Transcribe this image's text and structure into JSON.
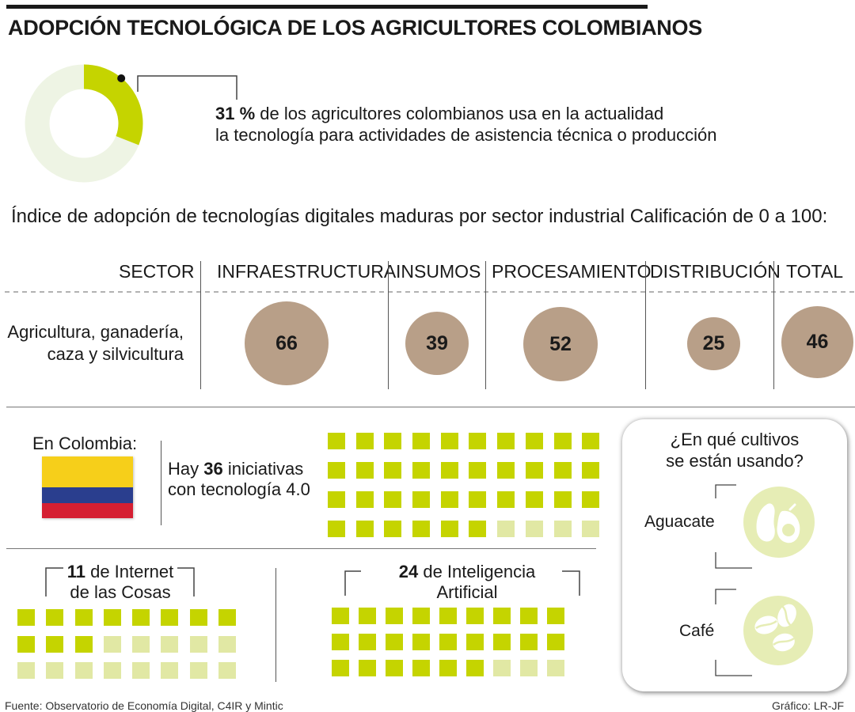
{
  "title": "ADOPCIÓN TECNOLÓGICA DE LOS AGRICULTORES COLOMBIANOS",
  "highlight": {
    "percent_text": "31 %",
    "line1_rest": " de los agricultores colombianos usa en la actualidad",
    "line2": "la tecnología para actividades de asistencia técnica o producción",
    "share": 0.31,
    "colors": {
      "share": "#c5d400",
      "rest": "#eef4e4"
    }
  },
  "index_title": "Índice de adopción de tecnologías digitales maduras por sector industrial Calificación de 0 a 100:",
  "table": {
    "headers": {
      "sector": "SECTOR",
      "infra": "INFRAESTRUCTURA",
      "insumos": "INSUMOS",
      "proc": "PROCESAMIENTO",
      "dist": "DISTRIBUCIÓN",
      "total": "TOTAL"
    },
    "row_label_line1": "Agricultura, ganadería,",
    "row_label_line2": "caza y silvicultura",
    "values": {
      "infra": "66",
      "insumos": "39",
      "proc": "52",
      "dist": "25",
      "total": "46"
    },
    "circle_color": "#b89f88"
  },
  "chart_data": {
    "type": "bar",
    "title": "Índice de adopción de tecnologías digitales maduras por sector industrial Calificación de 0 a 100:",
    "series": [
      {
        "name": "Agricultura, ganadería, caza y silvicultura",
        "values": [
          66,
          39,
          52,
          25,
          46
        ]
      }
    ],
    "categories": [
      "INFRAESTRUCTURA",
      "INSUMOS",
      "PROCESAMIENTO",
      "DISTRIBUCIÓN",
      "TOTAL"
    ],
    "ylim": [
      0,
      100
    ],
    "grid": false
  },
  "colombia": {
    "label": "En Colombia:",
    "hay": "Hay ",
    "count": "36",
    "rest1": " iniciativas",
    "line2": "con tecnología 4.0",
    "total_squares": 40,
    "on_squares": 36
  },
  "iot": {
    "count": "11",
    "text1": " de Internet",
    "text2": "de las Cosas",
    "total_squares": 24,
    "on_squares": 11
  },
  "ai": {
    "count": "24",
    "text1": " de Inteligencia",
    "text2": "Artificial",
    "total_squares": 27,
    "on_squares": 24
  },
  "crops": {
    "title_line1": "¿En qué cultivos",
    "title_line2": "se están usando?",
    "items": [
      "Aguacate",
      "Café"
    ],
    "icon_bg": "#e6edb5"
  },
  "footer": {
    "source": "Fuente:  Observatorio de Economía Digital, C4IR  y Mintic",
    "credit": "Gráfico: LR-JF"
  },
  "colors": {
    "square_on": "#c5d400",
    "square_off": "#e1e8a4"
  }
}
